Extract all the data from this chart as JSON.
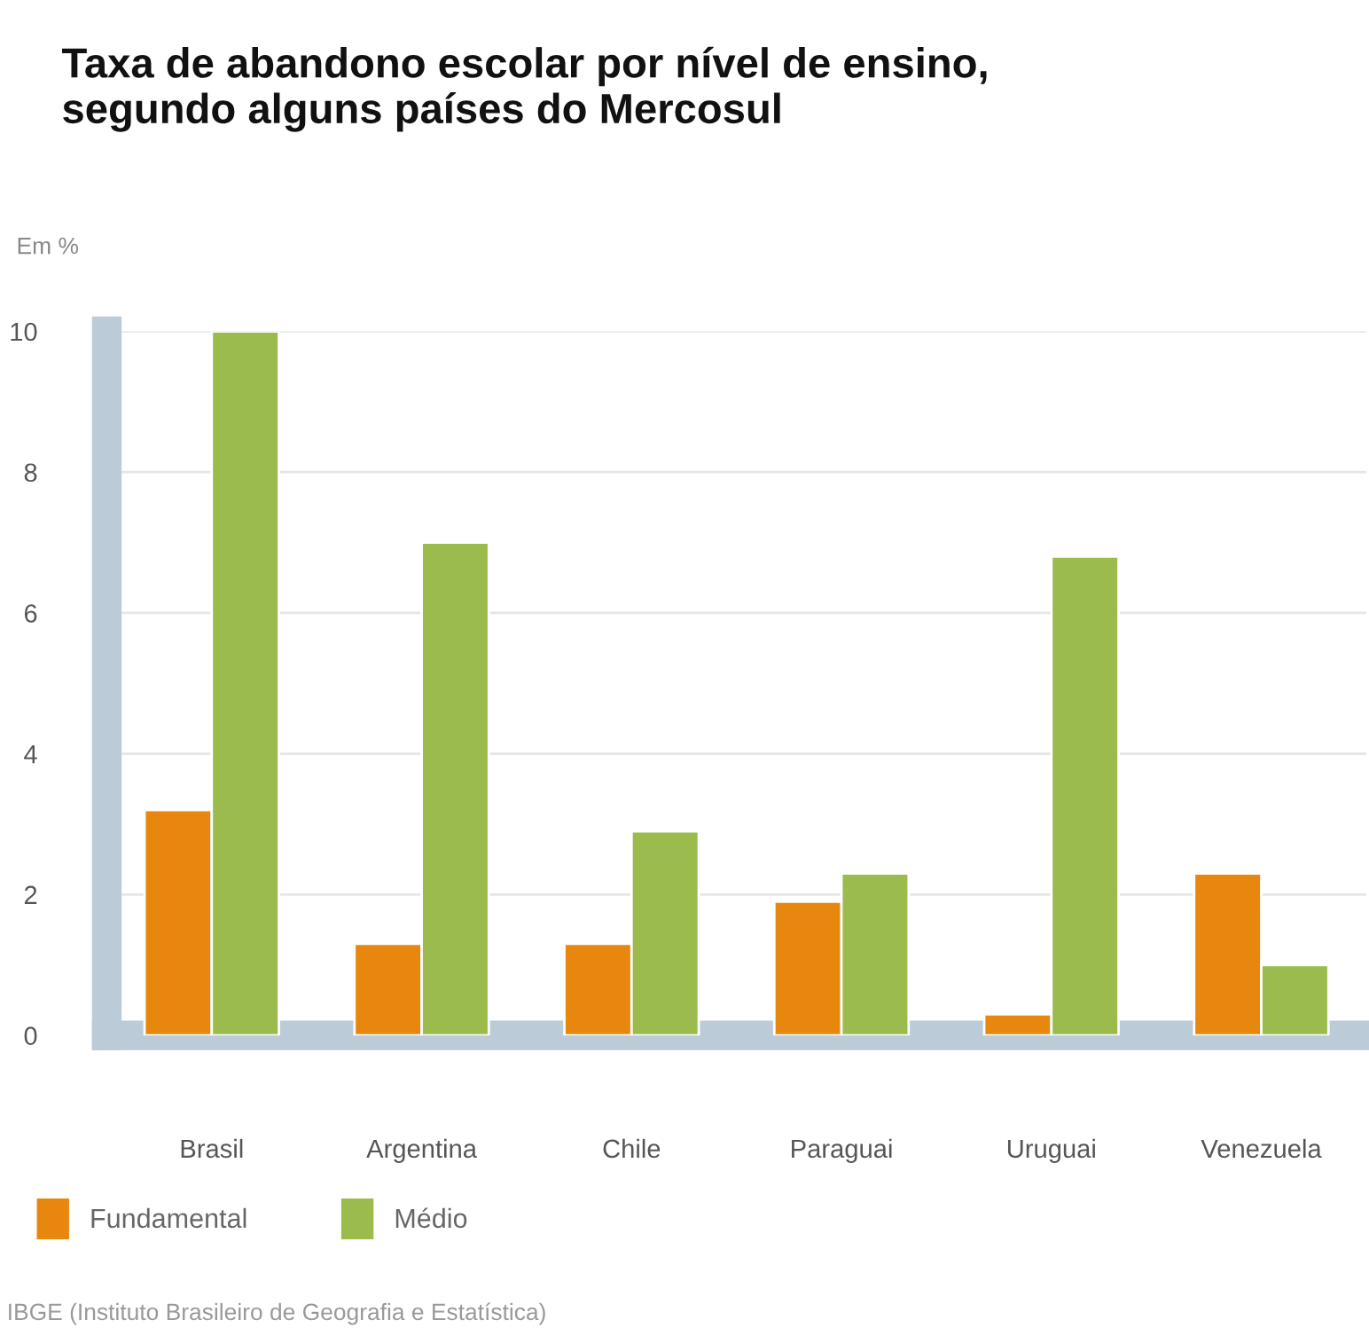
{
  "chart_data": {
    "type": "bar",
    "title": "Taxa de abandono escolar por nível de ensino,\nsegundo alguns países do Mercosul",
    "ylabel": "Em %",
    "categories": [
      "Brasil",
      "Argentina",
      "Chile",
      "Paraguai",
      "Uruguai",
      "Venezuela"
    ],
    "series": [
      {
        "name": "Fundamental",
        "color": "#e8870e",
        "values": [
          3.2,
          1.3,
          1.3,
          1.9,
          0.3,
          2.3
        ]
      },
      {
        "name": "Médio",
        "color": "#9bbb4c",
        "values": [
          10,
          7,
          2.9,
          2.3,
          6.8,
          1.0
        ]
      }
    ],
    "ylim": [
      0,
      10
    ],
    "yticks": [
      0,
      2,
      4,
      6,
      8,
      10
    ],
    "grid": "y",
    "legend": "bottom left",
    "annotations": [
      "IBGE (Instituto Brasileiro de Geografia e Estatística)"
    ]
  }
}
